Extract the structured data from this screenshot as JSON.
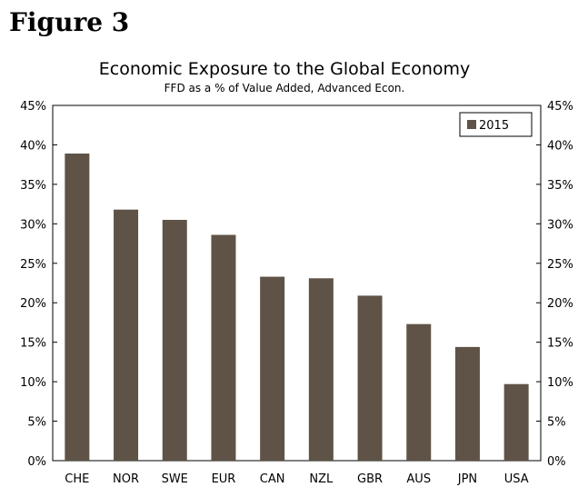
{
  "figure_label": "Figure 3",
  "colors": {
    "bar": "#5e5346",
    "axis": "#000000"
  },
  "chart_data": {
    "type": "bar",
    "title": "Economic Exposure to the Global Economy",
    "subtitle": "FFD as a % of Value Added, Advanced Econ.",
    "categories": [
      "CHE",
      "NOR",
      "SWE",
      "EUR",
      "CAN",
      "NZL",
      "GBR",
      "AUS",
      "JPN",
      "USA"
    ],
    "series": [
      {
        "name": "2015",
        "values": [
          38.9,
          31.8,
          30.5,
          28.6,
          23.3,
          23.1,
          20.9,
          17.3,
          14.4,
          9.7
        ]
      }
    ],
    "ylim": [
      0,
      45
    ],
    "yticks": [
      "0%",
      "5%",
      "10%",
      "15%",
      "20%",
      "25%",
      "30%",
      "35%",
      "40%",
      "45%"
    ],
    "xlabel": "",
    "ylabel": "",
    "legend_position": "top-right",
    "grid": false
  }
}
